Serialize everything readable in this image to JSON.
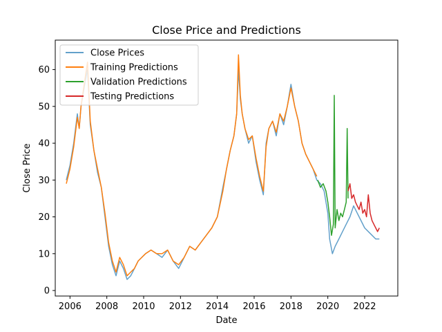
{
  "chart_data": {
    "type": "line",
    "title": "Close Price and Predictions",
    "xlabel": "Date",
    "ylabel": "Close Price",
    "xlim": [
      2005.2,
      2023.8
    ],
    "ylim": [
      -1.5,
      68
    ],
    "x_ticks": [
      "2006",
      "2008",
      "2010",
      "2012",
      "2014",
      "2016",
      "2018",
      "2020",
      "2022"
    ],
    "x_tick_values": [
      2006,
      2008,
      2010,
      2012,
      2014,
      2016,
      2018,
      2020,
      2022
    ],
    "y_ticks": [
      "0",
      "10",
      "20",
      "30",
      "40",
      "50",
      "60"
    ],
    "y_tick_values": [
      0,
      10,
      20,
      30,
      40,
      50,
      60
    ],
    "grid": false,
    "legend": "top-left",
    "series": [
      {
        "name": "Close Prices",
        "color": "#1f77b4",
        "x": [
          2005.8,
          2006.0,
          2006.2,
          2006.4,
          2006.5,
          2006.6,
          2006.8,
          2006.95,
          2007.1,
          2007.3,
          2007.5,
          2007.7,
          2007.9,
          2008.1,
          2008.3,
          2008.5,
          2008.7,
          2008.9,
          2009.1,
          2009.3,
          2009.5,
          2009.7,
          2009.9,
          2010.1,
          2010.4,
          2010.7,
          2011.0,
          2011.3,
          2011.6,
          2011.9,
          2012.2,
          2012.5,
          2012.8,
          2013.1,
          2013.4,
          2013.7,
          2014.0,
          2014.3,
          2014.5,
          2014.7,
          2014.9,
          2015.05,
          2015.15,
          2015.25,
          2015.35,
          2015.5,
          2015.7,
          2015.9,
          2016.1,
          2016.3,
          2016.5,
          2016.65,
          2016.8,
          2017.0,
          2017.2,
          2017.4,
          2017.6,
          2017.8,
          2018.0,
          2018.2,
          2018.4,
          2018.6,
          2018.8,
          2019.0,
          2019.2,
          2019.4,
          2019.6,
          2019.8,
          2020.0,
          2020.1,
          2020.25,
          2020.4,
          2020.6,
          2020.8,
          2021.0,
          2021.2,
          2021.4,
          2021.6,
          2021.8,
          2022.0,
          2022.2,
          2022.4,
          2022.6,
          2022.8
        ],
        "values": [
          30,
          34,
          40,
          48,
          44,
          50,
          56,
          60,
          45,
          38,
          32,
          28,
          20,
          12,
          7,
          4,
          8,
          6,
          3,
          4,
          6,
          8,
          9,
          10,
          11,
          10,
          9,
          11,
          8,
          6,
          9,
          12,
          11,
          13,
          15,
          17,
          20,
          28,
          33,
          38,
          42,
          48,
          60,
          52,
          48,
          44,
          40,
          42,
          35,
          30,
          26,
          40,
          44,
          46,
          42,
          48,
          45,
          50,
          56,
          50,
          46,
          40,
          37,
          35,
          33,
          30,
          29,
          27,
          21,
          14,
          10,
          12,
          14,
          16,
          18,
          20,
          23,
          21,
          19,
          17,
          16,
          15,
          14,
          14
        ]
      },
      {
        "name": "Training Predictions",
        "color": "#ff7f0e",
        "x": [
          2005.8,
          2006.0,
          2006.2,
          2006.4,
          2006.5,
          2006.6,
          2006.8,
          2006.95,
          2007.1,
          2007.3,
          2007.5,
          2007.7,
          2007.9,
          2008.1,
          2008.3,
          2008.5,
          2008.7,
          2008.9,
          2009.1,
          2009.3,
          2009.5,
          2009.7,
          2009.9,
          2010.1,
          2010.4,
          2010.7,
          2011.0,
          2011.3,
          2011.6,
          2011.9,
          2012.2,
          2012.5,
          2012.8,
          2013.1,
          2013.4,
          2013.7,
          2014.0,
          2014.3,
          2014.5,
          2014.7,
          2014.9,
          2015.05,
          2015.15,
          2015.25,
          2015.35,
          2015.5,
          2015.7,
          2015.9,
          2016.1,
          2016.3,
          2016.5,
          2016.65,
          2016.8,
          2017.0,
          2017.2,
          2017.4,
          2017.6,
          2017.8,
          2018.0,
          2018.2,
          2018.4,
          2018.6,
          2018.8,
          2019.0,
          2019.2,
          2019.4
        ],
        "values": [
          29,
          33,
          39,
          47,
          44,
          50,
          57,
          62,
          46,
          38,
          33,
          28,
          21,
          13,
          8,
          5,
          9,
          7,
          4,
          5,
          6,
          8,
          9,
          10,
          11,
          10,
          10,
          11,
          8,
          7,
          9,
          12,
          11,
          13,
          15,
          17,
          20,
          27,
          33,
          38,
          42,
          48,
          64,
          53,
          48,
          44,
          41,
          42,
          36,
          31,
          27,
          39,
          44,
          46,
          43,
          48,
          46,
          50,
          55,
          50,
          46,
          40,
          37,
          35,
          33,
          31
        ]
      },
      {
        "name": "Validation Predictions",
        "color": "#2ca02c",
        "x": [
          2019.45,
          2019.6,
          2019.75,
          2019.9,
          2020.0,
          2020.1,
          2020.2,
          2020.3,
          2020.35,
          2020.4,
          2020.5,
          2020.6,
          2020.7,
          2020.8,
          2020.9,
          2021.0,
          2021.05,
          2021.1
        ],
        "values": [
          30,
          28,
          29,
          27,
          24,
          20,
          15,
          18,
          53,
          17,
          22,
          19,
          21,
          20,
          22,
          24,
          44,
          25
        ]
      },
      {
        "name": "Testing Predictions",
        "color": "#d62728",
        "x": [
          2021.1,
          2021.2,
          2021.3,
          2021.4,
          2021.5,
          2021.6,
          2021.7,
          2021.8,
          2021.9,
          2022.0,
          2022.1,
          2022.2,
          2022.3,
          2022.4,
          2022.5,
          2022.6,
          2022.7,
          2022.8
        ],
        "values": [
          27,
          29,
          25,
          26,
          24,
          23,
          22,
          24,
          21,
          22,
          20,
          26,
          21,
          19,
          18,
          17,
          16,
          17
        ]
      }
    ]
  }
}
